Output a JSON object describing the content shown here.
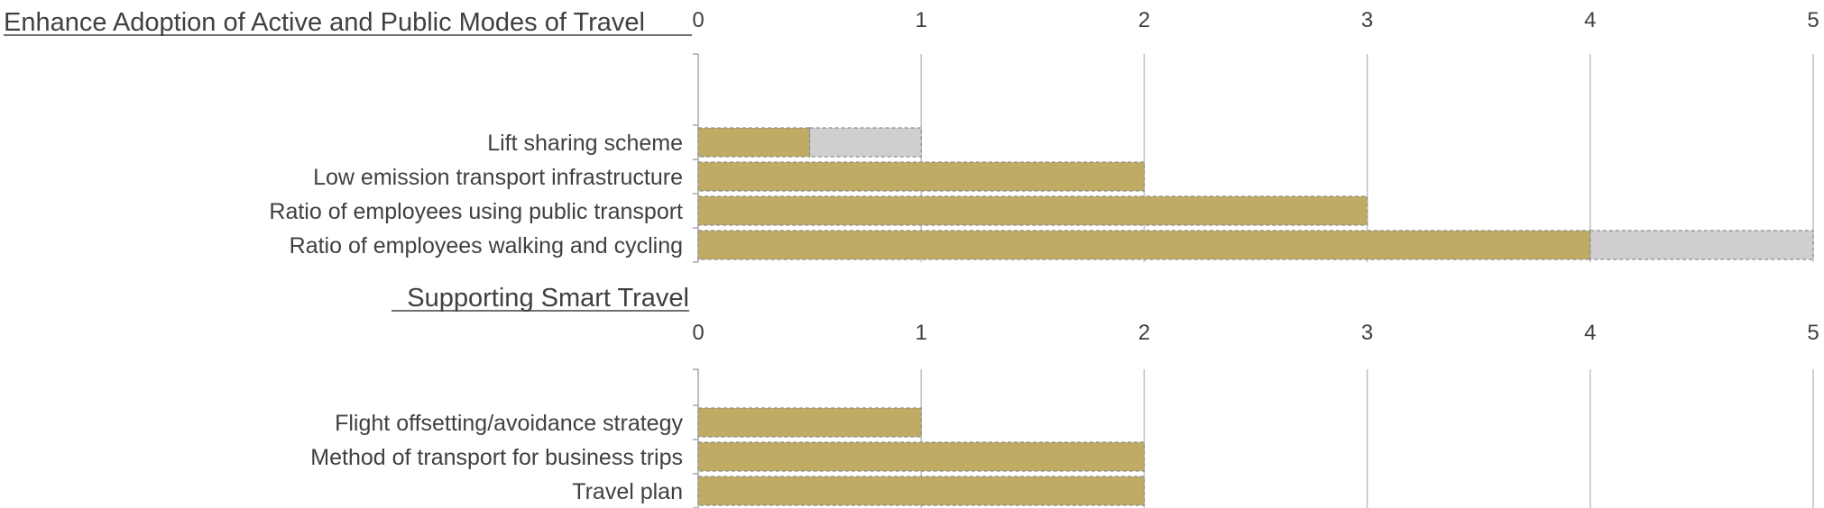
{
  "chart_data": [
    {
      "type": "bar",
      "orientation": "horizontal",
      "stacked": true,
      "title": "Enhance Adoption of Active and Public Modes of Travel",
      "categories": [
        "Lift sharing scheme",
        "Low emission transport infrastructure",
        "Ratio of employees using public transport",
        "Ratio of employees walking and cycling"
      ],
      "series": [
        {
          "values": [
            0.5,
            2,
            3,
            4
          ],
          "color": "#bfab63"
        },
        {
          "values": [
            0.5,
            0,
            0,
            1
          ],
          "color": "#d0cece"
        }
      ],
      "xlim": [
        0,
        5
      ],
      "xticks": [
        0,
        1,
        2,
        3,
        4,
        5
      ],
      "grid": true,
      "legend": "none"
    },
    {
      "type": "bar",
      "orientation": "horizontal",
      "stacked": true,
      "title": "Supporting Smart Travel",
      "categories": [
        "Flight offsetting/avoidance strategy",
        "Method of transport for business trips",
        "Travel plan"
      ],
      "series": [
        {
          "values": [
            1,
            2,
            2
          ],
          "color": "#bfab63"
        },
        {
          "values": [
            0,
            0,
            0
          ],
          "color": "#d0cece"
        }
      ],
      "xlim": [
        0,
        5
      ],
      "xticks": [
        0,
        1,
        2,
        3,
        4,
        5
      ],
      "grid": true,
      "legend": "none"
    }
  ]
}
